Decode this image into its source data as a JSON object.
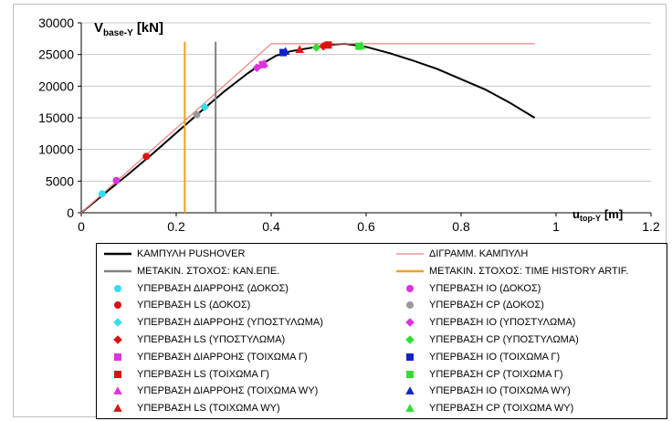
{
  "chart_data": {
    "type": "line",
    "ylabel_main": "V",
    "ylabel_sub": "base-Y",
    "ylabel_unit": "[kN]",
    "xlabel_main": "u",
    "xlabel_sub": "top-Y",
    "xlabel_unit": "[m]",
    "xlim": [
      0,
      1.2
    ],
    "ylim": [
      0,
      30000
    ],
    "x_ticks": [
      "0",
      "0.2",
      "0.4",
      "0.6",
      "0.8",
      "1",
      "1.2"
    ],
    "y_ticks": [
      "0",
      "5000",
      "10000",
      "15000",
      "20000",
      "25000",
      "30000"
    ],
    "grid": "horizontal",
    "series": [
      {
        "name": "ΚΑΜΠΥΛΗ PUSHOVER",
        "kind": "line",
        "color": "#000000",
        "width": 2,
        "points": [
          [
            0,
            0
          ],
          [
            0.05,
            3100
          ],
          [
            0.1,
            6150
          ],
          [
            0.15,
            9300
          ],
          [
            0.2,
            12600
          ],
          [
            0.25,
            15900
          ],
          [
            0.3,
            19100
          ],
          [
            0.35,
            22000
          ],
          [
            0.38,
            23500
          ],
          [
            0.41,
            24800
          ],
          [
            0.44,
            25500
          ],
          [
            0.48,
            26000
          ],
          [
            0.52,
            26500
          ],
          [
            0.555,
            26700
          ],
          [
            0.6,
            26200
          ],
          [
            0.65,
            25200
          ],
          [
            0.7,
            24000
          ],
          [
            0.75,
            22700
          ],
          [
            0.8,
            21100
          ],
          [
            0.85,
            19500
          ],
          [
            0.9,
            17500
          ],
          [
            0.955,
            15000
          ]
        ]
      },
      {
        "name": "ΔΙΓΡΑΜΜ. ΚΑΜΠΥΛΗ",
        "kind": "line",
        "color": "#ef8080",
        "width": 1.2,
        "points": [
          [
            0,
            0
          ],
          [
            0.4,
            26700
          ],
          [
            0.955,
            26700
          ]
        ]
      },
      {
        "name": "ΜΕΤΑΚΙΝ. ΣΤΟΧΟΣ: ΚΑΝ.ΕΠΕ.",
        "kind": "vline",
        "color": "#808080",
        "width": 2,
        "x": 0.283,
        "y_range": [
          0,
          27000
        ]
      },
      {
        "name": "ΜΕΤΑΚΙΝ. ΣΤΟΧΟΣ: TIME HISTORY ARTIF.",
        "kind": "vline",
        "color": "#f0a020",
        "width": 2,
        "x": 0.218,
        "y_range": [
          0,
          27000
        ]
      }
    ],
    "markers": [
      {
        "name": "ΥΠΕΡΒΑΣΗ ΔΙΑΡΡΟΗΣ (ΔΟΚΟΣ)",
        "shape": "circle",
        "color": "#33ddee",
        "points": [
          [
            0.044,
            3000
          ]
        ]
      },
      {
        "name": "ΥΠΕΡΒΑΣΗ ΙΟ (ΔΟΚΟΣ)",
        "shape": "circle",
        "color": "#dd33dd",
        "points": [
          [
            0.074,
            5100
          ]
        ]
      },
      {
        "name": "ΥΠΕΡΒΑΣΗ LS (ΔΟΚΟΣ)",
        "shape": "circle",
        "color": "#dd1111",
        "points": [
          [
            0.137,
            8900
          ]
        ]
      },
      {
        "name": "ΥΠΕΡΒΑΣΗ CP (ΔΟΚΟΣ)",
        "shape": "circle",
        "color": "#999999",
        "points": [
          [
            0.243,
            15500
          ]
        ]
      },
      {
        "name": "ΥΠΕΡΒΑΣΗ ΔΙΑΡΡΟΗΣ (ΥΠΟΣΤΥΛΩΜΑ)",
        "shape": "diamond",
        "color": "#33ddee",
        "points": [
          [
            0.26,
            16700
          ]
        ]
      },
      {
        "name": "ΥΠΕΡΒΑΣΗ ΙΟ (ΥΠΟΣΤΥΛΩΜΑ)",
        "shape": "diamond",
        "color": "#dd33dd",
        "points": [
          [
            0.37,
            22900
          ]
        ]
      },
      {
        "name": "ΥΠΕΡΒΑΣΗ LS (ΥΠΟΣΤΥΛΩΜΑ)",
        "shape": "diamond",
        "color": "#dd1111",
        "points": [
          [
            0.51,
            26300
          ]
        ]
      },
      {
        "name": "ΥΠΕΡΒΑΣΗ CP (ΥΠΟΣΤΥΛΩΜΑ)",
        "shape": "diamond",
        "color": "#33dd33",
        "points": [
          [
            0.495,
            26100
          ]
        ]
      },
      {
        "name": "ΥΠΕΡΒΑΣΗ ΔΙΑΡΡΟΗΣ (ΤΟΙΧΩΜΑ Γ)",
        "shape": "square",
        "color": "#dd33dd",
        "points": [
          [
            0.382,
            23400
          ]
        ]
      },
      {
        "name": "ΥΠΕΡΒΑΣΗ ΙΟ (ΤΟΙΧΩΜΑ Γ)",
        "shape": "square",
        "color": "#1122cc",
        "points": [
          [
            0.425,
            25300
          ]
        ]
      },
      {
        "name": "ΥΠΕΡΒΑΣΗ LS (ΤΟΙΧΩΜΑ Γ)",
        "shape": "square",
        "color": "#dd1111",
        "points": [
          [
            0.52,
            26500
          ]
        ]
      },
      {
        "name": "ΥΠΕΡΒΑΣΗ CP (ΤΟΙΧΩΜΑ Γ)",
        "shape": "square",
        "color": "#33dd33",
        "points": [
          [
            0.585,
            26300
          ]
        ]
      },
      {
        "name": "ΥΠΕΡΒΑΣΗ ΔΙΑΡΡΟΗΣ (ΤΟΙΧΩΜΑ WY)",
        "shape": "triangle",
        "color": "#dd33dd",
        "points": [
          [
            0.385,
            23600
          ]
        ]
      },
      {
        "name": "ΥΠΕΡΒΑΣΗ ΙΟ (ΤΟΙΧΩΜΑ WY)",
        "shape": "triangle",
        "color": "#1122cc",
        "points": [
          [
            0.43,
            25500
          ]
        ]
      },
      {
        "name": "ΥΠΕΡΒΑΣΗ LS (ΤΟΙΧΩΜΑ WY)",
        "shape": "triangle",
        "color": "#dd1111",
        "points": [
          [
            0.46,
            25800
          ]
        ]
      },
      {
        "name": "ΥΠΕΡΒΑΣΗ CP (ΤΟΙΧΩΜΑ WY)",
        "shape": "triangle",
        "color": "#33dd33",
        "points": [
          [
            0.59,
            26400
          ]
        ]
      }
    ],
    "legend": {
      "placement": "bottom",
      "columns": 2,
      "left": [
        {
          "label": "ΚΑΜΠΥΛΗ PUSHOVER",
          "sym": "line",
          "color": "#000000",
          "width": 2.5
        },
        {
          "label": "ΜΕΤΑΚΙΝ. ΣΤΟΧΟΣ: ΚΑΝ.ΕΠΕ.",
          "sym": "line",
          "color": "#808080",
          "width": 2.5
        },
        {
          "label": "ΥΠΕΡΒΑΣΗ ΔΙΑΡΡΟΗΣ (ΔΟΚΟΣ)",
          "sym": "circle",
          "color": "#33ddee"
        },
        {
          "label": "ΥΠΕΡΒΑΣΗ LS (ΔΟΚΟΣ)",
          "sym": "circle",
          "color": "#dd1111"
        },
        {
          "label": "ΥΠΕΡΒΑΣΗ ΔΙΑΡΡΟΗΣ (ΥΠΟΣΤΥΛΩΜΑ)",
          "sym": "diamond",
          "color": "#33ddee"
        },
        {
          "label": "ΥΠΕΡΒΑΣΗ LS (ΥΠΟΣΤΥΛΩΜΑ)",
          "sym": "diamond",
          "color": "#dd1111"
        },
        {
          "label": "ΥΠΕΡΒΑΣΗ ΔΙΑΡΡΟΗΣ (ΤΟΙΧΩΜΑ Γ)",
          "sym": "square",
          "color": "#dd33dd"
        },
        {
          "label": "ΥΠΕΡΒΑΣΗ LS (ΤΟΙΧΩΜΑ Γ)",
          "sym": "square",
          "color": "#dd1111"
        },
        {
          "label": "ΥΠΕΡΒΑΣΗ ΔΙΑΡΡΟΗΣ (ΤΟΙΧΩΜΑ WY)",
          "sym": "triangle",
          "color": "#dd33dd"
        },
        {
          "label": "ΥΠΕΡΒΑΣΗ LS (ΤΟΙΧΩΜΑ WY)",
          "sym": "triangle",
          "color": "#dd1111"
        }
      ],
      "right": [
        {
          "label": "ΔΙΓΡΑΜΜ. ΚΑΜΠΥΛΗ",
          "sym": "line",
          "color": "#ef8080",
          "width": 1.2
        },
        {
          "label": "ΜΕΤΑΚΙΝ. ΣΤΟΧΟΣ: TIME HISTORY ARTIF.",
          "sym": "line",
          "color": "#f0a020",
          "width": 2.5
        },
        {
          "label": "ΥΠΕΡΒΑΣΗ ΙΟ (ΔΟΚΟΣ)",
          "sym": "circle",
          "color": "#dd33dd"
        },
        {
          "label": "ΥΠΕΡΒΑΣΗ CP (ΔΟΚΟΣ)",
          "sym": "circle",
          "color": "#999999"
        },
        {
          "label": "ΥΠΕΡΒΑΣΗ ΙΟ (ΥΠΟΣΤΥΛΩΜΑ)",
          "sym": "diamond",
          "color": "#dd33dd"
        },
        {
          "label": "ΥΠΕΡΒΑΣΗ CP (ΥΠΟΣΤΥΛΩΜΑ)",
          "sym": "diamond",
          "color": "#33dd33"
        },
        {
          "label": "ΥΠΕΡΒΑΣΗ ΙΟ (ΤΟΙΧΩΜΑ Γ)",
          "sym": "square",
          "color": "#1122cc"
        },
        {
          "label": "ΥΠΕΡΒΑΣΗ CP (ΤΟΙΧΩΜΑ Γ)",
          "sym": "square",
          "color": "#33dd33"
        },
        {
          "label": "ΥΠΕΡΒΑΣΗ ΙΟ (ΤΟΙΧΩΜΑ WY)",
          "sym": "triangle",
          "color": "#1122cc"
        },
        {
          "label": "ΥΠΕΡΒΑΣΗ CP (ΤΟΙΧΩΜΑ WY)",
          "sym": "triangle",
          "color": "#33dd33"
        }
      ]
    }
  }
}
